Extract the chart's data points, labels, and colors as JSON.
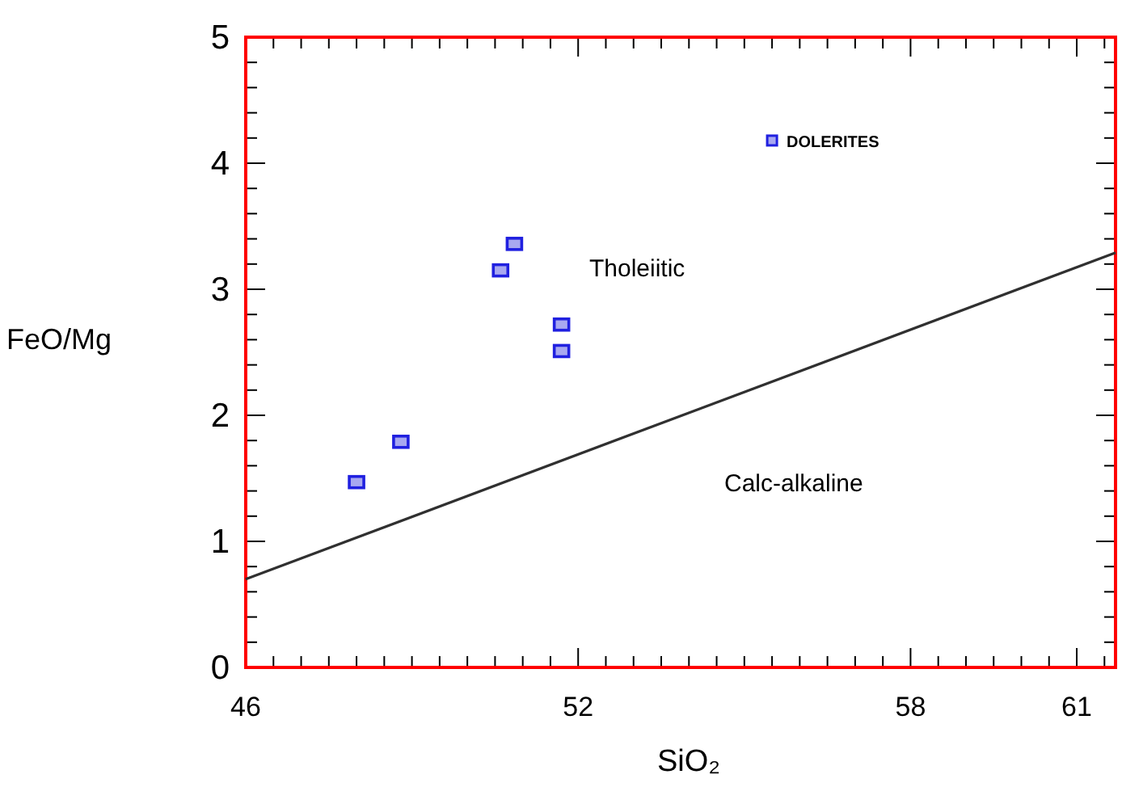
{
  "chart_data": {
    "type": "scatter",
    "xlabel": "SiO₂",
    "ylabel": "FeO/Mg",
    "xlim": [
      46,
      61.7
    ],
    "ylim": [
      0,
      5
    ],
    "xticks": [
      46,
      {
        "value": 46.5,
        "label": null
      },
      {
        "value": 47,
        "label": null
      },
      {
        "value": 47.5,
        "label": null
      },
      {
        "value": 48,
        "label": null
      },
      {
        "value": 48.5,
        "label": null
      },
      {
        "value": 49,
        "label": null
      },
      {
        "value": 49.5,
        "label": null
      },
      {
        "value": 50,
        "label": null
      },
      {
        "value": 50.5,
        "label": null
      },
      {
        "value": 51,
        "label": null
      },
      {
        "value": 51.5,
        "label": null
      },
      52,
      {
        "value": 52.5,
        "label": null
      },
      {
        "value": 53,
        "label": null
      },
      {
        "value": 53.5,
        "label": null
      },
      {
        "value": 54,
        "label": null
      },
      {
        "value": 54.5,
        "label": null
      },
      {
        "value": 55,
        "label": null
      },
      {
        "value": 55.5,
        "label": null
      },
      {
        "value": 56,
        "label": null
      },
      {
        "value": 56.5,
        "label": null
      },
      {
        "value": 57,
        "label": null
      },
      {
        "value": 57.5,
        "label": null
      },
      58,
      {
        "value": 58.5,
        "label": null
      },
      {
        "value": 59,
        "label": null
      },
      {
        "value": 59.5,
        "label": null
      },
      {
        "value": 60,
        "label": null
      },
      {
        "value": 60.5,
        "label": null
      },
      61,
      {
        "value": 61.5,
        "label": null
      }
    ],
    "yticks": [
      0,
      {
        "value": 0.2,
        "label": null
      },
      {
        "value": 0.4,
        "label": null
      },
      {
        "value": 0.6,
        "label": null
      },
      {
        "value": 0.8,
        "label": null
      },
      1,
      {
        "value": 1.2,
        "label": null
      },
      {
        "value": 1.4,
        "label": null
      },
      {
        "value": 1.6,
        "label": null
      },
      {
        "value": 1.8,
        "label": null
      },
      2,
      {
        "value": 2.2,
        "label": null
      },
      {
        "value": 2.4,
        "label": null
      },
      {
        "value": 2.6,
        "label": null
      },
      {
        "value": 2.8,
        "label": null
      },
      3,
      {
        "value": 3.2,
        "label": null
      },
      {
        "value": 3.4,
        "label": null
      },
      {
        "value": 3.6,
        "label": null
      },
      {
        "value": 3.8,
        "label": null
      },
      4,
      {
        "value": 4.2,
        "label": null
      },
      {
        "value": 4.4,
        "label": null
      },
      {
        "value": 4.6,
        "label": null
      },
      {
        "value": 4.8,
        "label": null
      },
      5
    ],
    "grid": false,
    "legend": "top right",
    "marker": "square",
    "series": [
      {
        "name": "DOLERITES",
        "color": "#2020e0",
        "x": [
          48.0,
          48.8,
          50.6,
          50.85,
          51.7,
          51.7
        ],
        "values": [
          1.47,
          1.79,
          3.15,
          3.36,
          2.72,
          2.51
        ]
      },
      {
        "type": "line",
        "color": "#303030",
        "x": [
          46,
          61.7
        ],
        "values": [
          0.7,
          3.29
        ],
        "line_style": "solid",
        "marker": "none"
      }
    ],
    "annotations": [
      "Tholeiitic",
      "Calc-alkaline"
    ]
  }
}
